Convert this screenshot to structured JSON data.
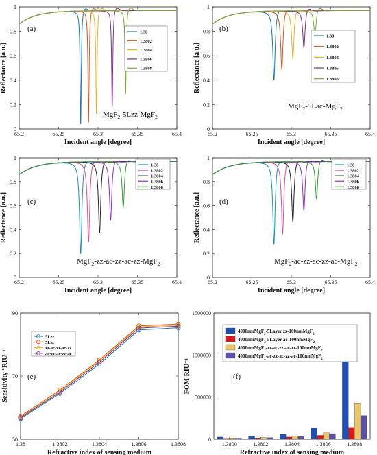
{
  "chart_data": [
    {
      "panel_label": "(a)",
      "type": "line",
      "title": "",
      "xlabel": "Incident angle [degree]",
      "ylabel": "Reflectance [a.u.]",
      "xlim": [
        65.2,
        65.4
      ],
      "ylim": [
        0,
        1
      ],
      "xticks": [
        "65.2",
        "65.25",
        "65.3",
        "65.35",
        "65.4"
      ],
      "yticks": [
        "0",
        "0.2",
        "0.4",
        "0.6",
        "0.8",
        "1"
      ],
      "annotation": [
        "MgF",
        "2",
        "-5Lzz-MgF",
        "2"
      ],
      "legend_position": "right",
      "series": [
        {
          "name": "1.38",
          "color": "#1f77b4",
          "dip_angle": 65.278,
          "min_reflectance": 0.02
        },
        {
          "name": "1.3802",
          "color": "#d95319",
          "dip_angle": 65.288,
          "min_reflectance": 0.03
        },
        {
          "name": "1.3804",
          "color": "#edb120",
          "dip_angle": 65.298,
          "min_reflectance": 0.1
        },
        {
          "name": "1.3806",
          "color": "#7e2f8e",
          "dip_angle": 65.318,
          "min_reflectance": 0.16
        },
        {
          "name": "1.3808",
          "color": "#77ac30",
          "dip_angle": 65.335,
          "min_reflectance": 0.27
        }
      ]
    },
    {
      "panel_label": "(b)",
      "type": "line",
      "title": "",
      "xlabel": "Incident angle [degree]",
      "ylabel": "Reflectance [a.u.]",
      "xlim": [
        65.2,
        65.4
      ],
      "ylim": [
        0,
        1
      ],
      "xticks": [
        "65.2",
        "65.25",
        "65.3",
        "65.35",
        "65.4"
      ],
      "yticks": [
        "0",
        "0.2",
        "0.4",
        "0.6",
        "0.8",
        "1"
      ],
      "annotation": [
        "MgF",
        "2",
        "-5Lac-MgF",
        "2"
      ],
      "legend_position": "right",
      "series": [
        {
          "name": "1.38",
          "color": "#1f77b4",
          "dip_angle": 65.278,
          "min_reflectance": 0.39
        },
        {
          "name": "1.3802",
          "color": "#d95319",
          "dip_angle": 65.288,
          "min_reflectance": 0.48
        },
        {
          "name": "1.3804",
          "color": "#edb120",
          "dip_angle": 65.302,
          "min_reflectance": 0.57
        },
        {
          "name": "1.3806",
          "color": "#7e2f8e",
          "dip_angle": 65.316,
          "min_reflectance": 0.66
        },
        {
          "name": "1.3808",
          "color": "#77ac30",
          "dip_angle": 65.33,
          "min_reflectance": 0.76
        }
      ]
    },
    {
      "panel_label": "(c)",
      "type": "line",
      "title": "",
      "xlabel": "Incident angle [degree]",
      "ylabel": "Reflectance [a.u.]",
      "xlim": [
        65.2,
        65.4
      ],
      "ylim": [
        0,
        1
      ],
      "xticks": [
        "65.2",
        "65.25",
        "65.3",
        "65.35",
        "65.4"
      ],
      "yticks": [
        "0",
        "0.2",
        "0.4",
        "0.6",
        "0.8",
        "1"
      ],
      "annotation": [
        "MgF",
        "2",
        "-zz-ac-zz-ac-zz-MgF",
        "2"
      ],
      "legend_position": "top-right",
      "series": [
        {
          "name": "1.38",
          "color": "#1a8fb8",
          "dip_angle": 65.278,
          "min_reflectance": 0.18
        },
        {
          "name": "1.3802",
          "color": "#e64c8c",
          "dip_angle": 65.288,
          "min_reflectance": 0.28
        },
        {
          "name": "1.3804",
          "color": "#222222",
          "dip_angle": 65.302,
          "min_reflectance": 0.36
        },
        {
          "name": "1.3806",
          "color": "#8a2be2",
          "dip_angle": 65.316,
          "min_reflectance": 0.47
        },
        {
          "name": "1.3808",
          "color": "#2ca02c",
          "dip_angle": 65.332,
          "min_reflectance": 0.58
        }
      ]
    },
    {
      "panel_label": "(d)",
      "type": "line",
      "title": "",
      "xlabel": "Incident angle [degree]",
      "ylabel": "Reflectance [a.u.]",
      "xlim": [
        65.2,
        65.4
      ],
      "ylim": [
        0,
        1
      ],
      "xticks": [
        "65.2",
        "65.25",
        "65.3",
        "65.35",
        "65.4"
      ],
      "yticks": [
        "0",
        "0.2",
        "0.4",
        "0.6",
        "0.8",
        "1"
      ],
      "annotation": [
        "MgF",
        "2",
        "-ac-zz-ac-zz-ac-MgF",
        "2"
      ],
      "legend_position": "top-right",
      "series": [
        {
          "name": "1.38",
          "color": "#1a8fb8",
          "dip_angle": 65.278,
          "min_reflectance": 0.26
        },
        {
          "name": "1.3802",
          "color": "#e64c8c",
          "dip_angle": 65.289,
          "min_reflectance": 0.35
        },
        {
          "name": "1.3804",
          "color": "#222222",
          "dip_angle": 65.302,
          "min_reflectance": 0.45
        },
        {
          "name": "1.3806",
          "color": "#8a2be2",
          "dip_angle": 65.316,
          "min_reflectance": 0.55
        },
        {
          "name": "1.3808",
          "color": "#2ca02c",
          "dip_angle": 65.332,
          "min_reflectance": 0.65
        }
      ]
    },
    {
      "panel_label": "(e)",
      "type": "line",
      "title": "",
      "xlabel": "Refractive index of sensing medium",
      "ylabel": "Sensitivity °RIU⁻¹",
      "xlim": [
        1.38,
        1.3808
      ],
      "ylim": [
        50,
        90
      ],
      "x": [
        1.38,
        1.3802,
        1.3804,
        1.3806,
        1.3808
      ],
      "xticks": [
        "1.38",
        "1.3802",
        "1.3804",
        "1.3806",
        "1.3808"
      ],
      "yticks": [
        "50",
        "70",
        "90"
      ],
      "legend_position": "top-left",
      "series": [
        {
          "name": "5Lzz",
          "color": "#1f77b4",
          "values": [
            56.5,
            64.5,
            73.8,
            84.6,
            85.3
          ]
        },
        {
          "name": "5Lac",
          "color": "#d95319",
          "values": [
            57.3,
            65.6,
            75.1,
            85.9,
            86.5
          ]
        },
        {
          "name": "zz-ac-zz-ac-zz",
          "color": "#edb120",
          "values": [
            57.0,
            65.2,
            74.8,
            85.6,
            86.1
          ]
        },
        {
          "name": "ac-zz-ac-zz-ac",
          "color": "#7e2f8e",
          "values": [
            56.8,
            64.9,
            74.4,
            85.2,
            85.8
          ]
        }
      ]
    },
    {
      "panel_label": "(f)",
      "type": "bar",
      "title": "",
      "xlabel": "Refractive index of sensing medium",
      "ylabel": "FOM RIU⁻¹",
      "ylim": [
        0,
        1500000
      ],
      "categories": [
        "1.3800",
        "1.3802",
        "1.3804",
        "1.3806",
        "1.3808"
      ],
      "yticks": [
        "0",
        "500000",
        "1000000",
        "1500000"
      ],
      "legend_position": "top-left",
      "series": [
        {
          "name": [
            "4000nmMgF",
            "2",
            "-5Layer zz-100nmMgF",
            "2"
          ],
          "color": "#1f4fb4",
          "values": [
            25000,
            35000,
            60000,
            130000,
            1170000
          ]
        },
        {
          "name": [
            "4000nmMgF",
            "2",
            "-5Layer ac-100nmMgF",
            "2"
          ],
          "color": "#d7191c",
          "values": [
            10000,
            15000,
            25000,
            45000,
            140000
          ]
        },
        {
          "name": [
            "4000nmMgF",
            "2",
            "-zz-ac-zz-ac-zz-100nmMgF",
            "2"
          ],
          "color": "#eac86a",
          "values": [
            15000,
            20000,
            35000,
            75000,
            430000
          ]
        },
        {
          "name": [
            "4000nmMgF",
            "2",
            "-ac-zz-ac-zz-ac-100nmMgF",
            "2"
          ],
          "color": "#5b4fa8",
          "values": [
            12000,
            18000,
            30000,
            65000,
            280000
          ]
        }
      ]
    }
  ]
}
